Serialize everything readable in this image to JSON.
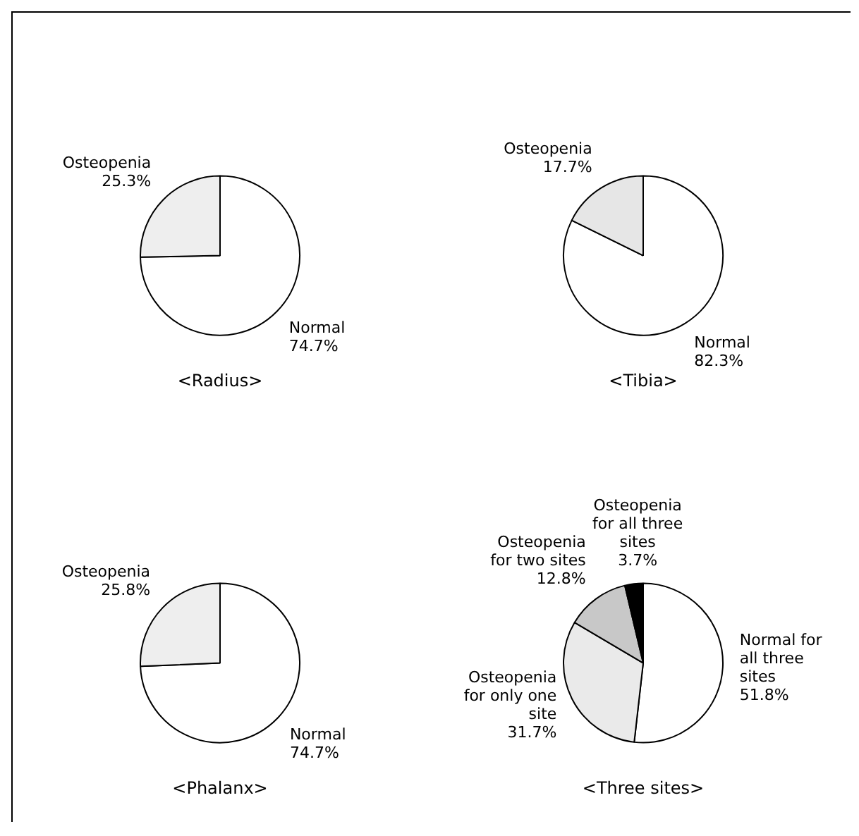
{
  "chart_data": [
    {
      "type": "pie",
      "title": "<Radius>",
      "categories": [
        "Normal",
        "Osteopenia"
      ],
      "values": [
        74.7,
        25.3
      ],
      "colors": [
        "#ffffff",
        "#eeeeee"
      ],
      "value_labels": [
        "74.7%",
        "25.3%"
      ]
    },
    {
      "type": "pie",
      "title": "<Tibia>",
      "categories": [
        "Normal",
        "Osteopenia"
      ],
      "values": [
        82.3,
        17.7
      ],
      "colors": [
        "#ffffff",
        "#e6e6e6"
      ],
      "value_labels": [
        "82.3%",
        "17.7%"
      ]
    },
    {
      "type": "pie",
      "title": "<Phalanx>",
      "categories": [
        "Normal",
        "Osteopenia"
      ],
      "values": [
        74.7,
        25.8
      ],
      "colors": [
        "#ffffff",
        "#eeeeee"
      ],
      "value_labels": [
        "74.7%",
        "25.8%"
      ]
    },
    {
      "type": "pie",
      "title": "<Three sites>",
      "categories": [
        "Normal for all three sites",
        "Osteopenia for only one site",
        "Osteopenia for two sites",
        "Osteopenia for all three sites"
      ],
      "values": [
        51.8,
        31.7,
        12.8,
        3.7
      ],
      "colors": [
        "#ffffff",
        "#eaeaea",
        "#c8c8c8",
        "#000000"
      ],
      "value_labels": [
        "51.8%",
        "31.7%",
        "12.8%",
        "3.7%"
      ]
    }
  ]
}
